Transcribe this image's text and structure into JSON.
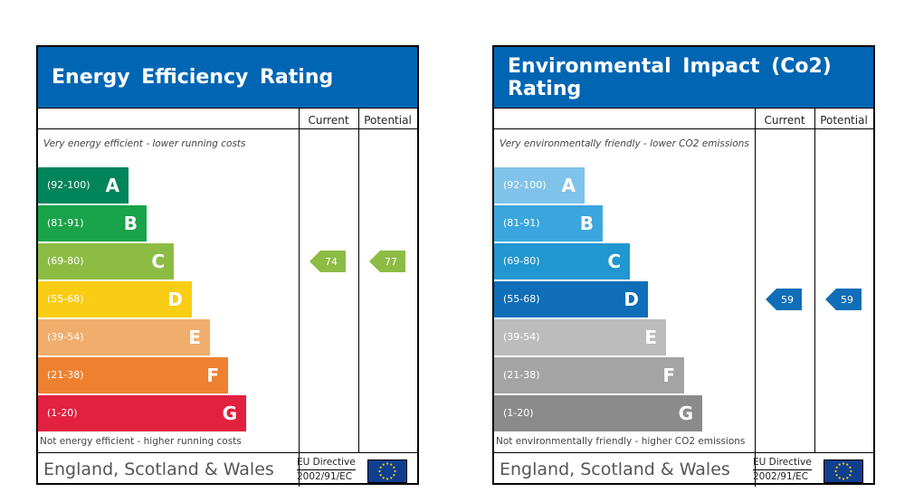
{
  "panels": [
    {
      "title": "Energy Efficiency Rating",
      "col_current": "Current",
      "col_potential": "Potential",
      "top_text": "Very energy efficient - lower running costs",
      "bottom_text": "Not energy efficient - higher running costs",
      "bands": [
        {
          "range": "(92-100)",
          "letter": "A",
          "color": "#00845a"
        },
        {
          "range": "(81-91)",
          "letter": "B",
          "color": "#19a34a"
        },
        {
          "range": "(69-80)",
          "letter": "C",
          "color": "#8cbc44"
        },
        {
          "range": "(55-68)",
          "letter": "D",
          "color": "#f8cd14"
        },
        {
          "range": "(39-54)",
          "letter": "E",
          "color": "#f1ad6c"
        },
        {
          "range": "(21-38)",
          "letter": "F",
          "color": "#ee8130"
        },
        {
          "range": "(1-20)",
          "letter": "G",
          "color": "#e2203f"
        }
      ],
      "current": {
        "value": "74",
        "band": "C",
        "color": "#8cbc44"
      },
      "potential": {
        "value": "77",
        "band": "C",
        "color": "#8cbc44"
      },
      "footer_region": "England, Scotland & Wales",
      "footer_directive_1": "EU Directive",
      "footer_directive_2": "2002/91/EC",
      "flag_icon": "eu-flag-icon"
    },
    {
      "title": "Environmental Impact (Co2) Rating",
      "col_current": "Current",
      "col_potential": "Potential",
      "top_text": "Very environmentally friendly - lower CO2 emissions",
      "bottom_text": "Not environmentally friendly - higher CO2 emissions",
      "bands": [
        {
          "range": "(92-100)",
          "letter": "A",
          "color": "#7fc3ea"
        },
        {
          "range": "(81-91)",
          "letter": "B",
          "color": "#3aa6dd"
        },
        {
          "range": "(69-80)",
          "letter": "C",
          "color": "#2196d1"
        },
        {
          "range": "(55-68)",
          "letter": "D",
          "color": "#0f6eb7"
        },
        {
          "range": "(39-54)",
          "letter": "E",
          "color": "#bcbcbc"
        },
        {
          "range": "(21-38)",
          "letter": "F",
          "color": "#a4a4a4"
        },
        {
          "range": "(1-20)",
          "letter": "G",
          "color": "#8b8b8b"
        }
      ],
      "current": {
        "value": "59",
        "band": "D",
        "color": "#0f6eb7"
      },
      "potential": {
        "value": "59",
        "band": "D",
        "color": "#0f6eb7"
      },
      "footer_region": "England, Scotland & Wales",
      "footer_directive_1": "EU Directive",
      "footer_directive_2": "2002/91/EC",
      "flag_icon": "eu-flag-icon"
    }
  ]
}
